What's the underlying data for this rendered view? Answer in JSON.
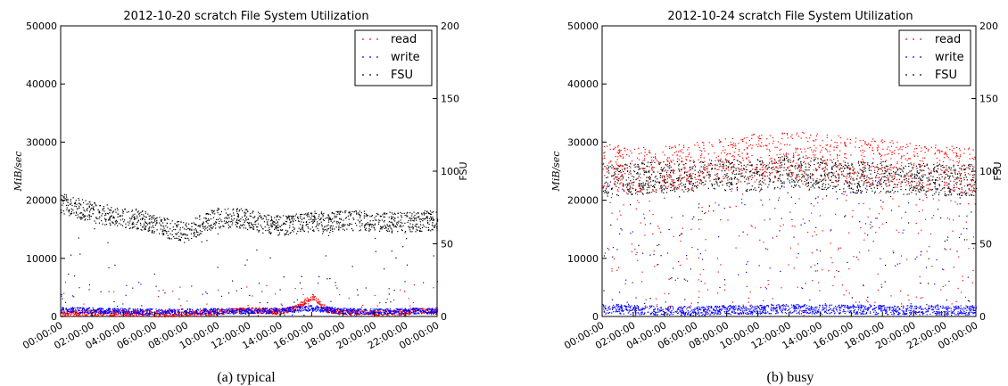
{
  "chart_data": [
    {
      "type": "scatter",
      "title": "2012-10-20 scratch File System Utilization",
      "caption": "(a)  typical",
      "ylabel": "MiB/sec",
      "y2label": "FSU",
      "ylim": [
        0,
        50000
      ],
      "y2lim": [
        0,
        200
      ],
      "yticks": [
        "0",
        "10000",
        "20000",
        "30000",
        "40000",
        "50000"
      ],
      "y2ticks": [
        "0",
        "50",
        "100",
        "150",
        "200"
      ],
      "xticks": [
        "00:00:00",
        "02:00:00",
        "04:00:00",
        "06:00:00",
        "08:00:00",
        "10:00:00",
        "12:00:00",
        "14:00:00",
        "16:00:00",
        "18:00:00",
        "20:00:00",
        "22:00:00",
        "00:00:00"
      ],
      "legend": {
        "placement": "top-right",
        "entries": [
          "read",
          "write",
          "FSU"
        ]
      },
      "series": [
        {
          "name": "read",
          "color": "#ff0000",
          "axis": "left",
          "hours": [
            0,
            2,
            4,
            6,
            8,
            10,
            12,
            14,
            15,
            16,
            17,
            18,
            20,
            22,
            23,
            24
          ],
          "values": [
            500,
            700,
            600,
            500,
            500,
            800,
            1200,
            900,
            1500,
            3500,
            1200,
            800,
            600,
            800,
            1000,
            800
          ]
        },
        {
          "name": "write",
          "color": "#0000ff",
          "axis": "left",
          "hours": [
            0,
            2,
            4,
            6,
            8,
            10,
            12,
            14,
            16,
            18,
            20,
            22,
            24
          ],
          "values": [
            1200,
            1100,
            1000,
            900,
            900,
            1000,
            1000,
            1100,
            1500,
            1000,
            900,
            1000,
            1100
          ]
        },
        {
          "name": "FSU",
          "color": "#000000",
          "axis": "right",
          "hours": [
            0,
            1,
            2,
            3,
            4,
            5,
            6,
            7,
            8,
            9,
            10,
            11,
            12,
            13,
            14,
            15,
            16,
            17,
            18,
            19,
            20,
            21,
            22,
            23,
            24
          ],
          "values": [
            78,
            75,
            72,
            70,
            68,
            67,
            64,
            60,
            58,
            64,
            68,
            68,
            67,
            64,
            63,
            64,
            66,
            65,
            66,
            66,
            66,
            65,
            65,
            66,
            66
          ]
        }
      ]
    },
    {
      "type": "scatter",
      "title": "2012-10-24 scratch File System Utilization",
      "caption": "(b)  busy",
      "ylabel": "MiB/sec",
      "y2label": "FSU",
      "ylim": [
        0,
        50000
      ],
      "y2lim": [
        0,
        200
      ],
      "yticks": [
        "0",
        "10000",
        "20000",
        "30000",
        "40000",
        "50000"
      ],
      "y2ticks": [
        "0",
        "50",
        "100",
        "150",
        "200"
      ],
      "xticks": [
        "00:00:00",
        "02:00:00",
        "04:00:00",
        "06:00:00",
        "08:00:00",
        "10:00:00",
        "12:00:00",
        "14:00:00",
        "16:00:00",
        "18:00:00",
        "20:00:00",
        "22:00:00",
        "00:00:00"
      ],
      "legend": {
        "placement": "top-right",
        "entries": [
          "read",
          "write",
          "FSU"
        ]
      },
      "series": [
        {
          "name": "read",
          "color": "#ff0000",
          "axis": "left",
          "hours": [
            0,
            2,
            4,
            6,
            8,
            10,
            12,
            14,
            16,
            18,
            20,
            22,
            24
          ],
          "values": [
            26000,
            25000,
            25500,
            26000,
            27000,
            27500,
            28000,
            27500,
            27000,
            26500,
            26000,
            25500,
            25000
          ]
        },
        {
          "name": "write",
          "color": "#0000ff",
          "axis": "left",
          "hours": [
            0,
            2,
            4,
            6,
            8,
            10,
            12,
            14,
            16,
            18,
            20,
            22,
            24
          ],
          "values": [
            1500,
            1200,
            1100,
            1000,
            1200,
            1300,
            1400,
            1300,
            1300,
            1200,
            1200,
            1100,
            1200
          ]
        },
        {
          "name": "FSU",
          "color": "#000000",
          "axis": "right",
          "hours": [
            0,
            2,
            4,
            6,
            8,
            10,
            12,
            14,
            16,
            18,
            20,
            22,
            24
          ],
          "values": [
            94,
            95,
            96,
            97,
            97,
            98,
            100,
            98,
            96,
            96,
            95,
            94,
            94
          ]
        }
      ]
    }
  ]
}
